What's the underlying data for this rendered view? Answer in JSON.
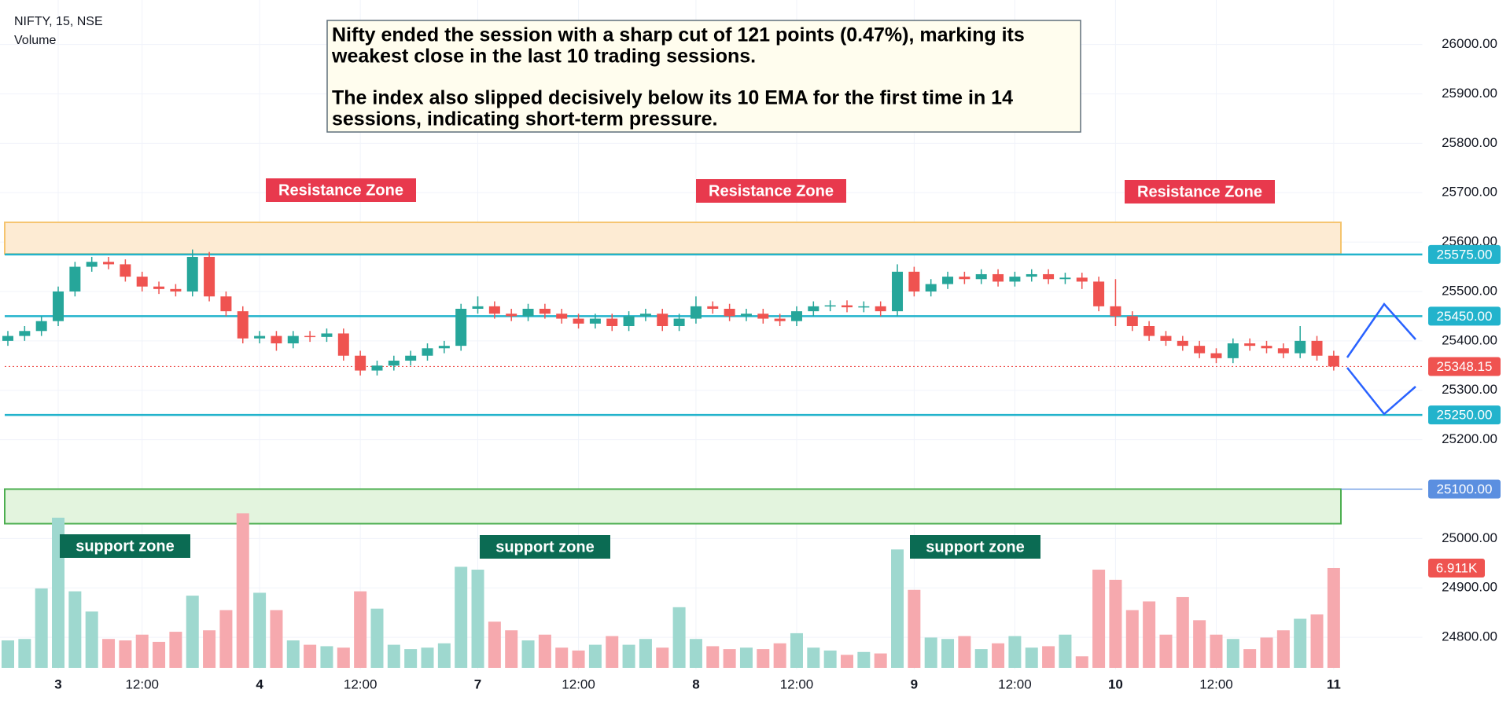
{
  "chart_data": {
    "type": "candlestick",
    "title": "NIFTY, 15, NSE",
    "subtitle": "Volume",
    "annotation": [
      "Nifty ended the session with a sharp cut of 121 points (0.47%), marking its",
      "weakest close in the last 10 trading sessions.",
      "The index also slipped decisively below its 10 EMA for the first time in 14",
      "sessions, indicating short-term pressure."
    ],
    "categories": [
      null,
      null,
      null,
      "3",
      null,
      null,
      null,
      null,
      "12:00",
      null,
      null,
      null,
      null,
      null,
      null,
      "4",
      null,
      null,
      null,
      null,
      null,
      "12:00",
      null,
      null,
      null,
      null,
      null,
      null,
      "7",
      null,
      null,
      null,
      null,
      null,
      "12:00",
      null,
      null,
      null,
      null,
      null,
      null,
      "8",
      null,
      null,
      null,
      null,
      null,
      "12:00",
      null,
      null,
      null,
      null,
      null,
      null,
      "9",
      null,
      null,
      null,
      null,
      null,
      "12:00",
      null,
      null,
      null,
      null,
      null,
      "10",
      null,
      null,
      null,
      null,
      null,
      "12:00",
      null,
      null,
      null,
      null,
      null,
      null,
      "11"
    ],
    "open": [
      25400,
      25410,
      25420,
      25440,
      25500,
      25550,
      25560,
      25555,
      25530,
      25510,
      25505,
      25500,
      25570,
      25490,
      25460,
      25405,
      25410,
      25395,
      25410,
      25408,
      25415,
      25370,
      25340,
      25350,
      25360,
      25370,
      25385,
      25390,
      25465,
      25470,
      25455,
      25450,
      25465,
      25455,
      25445,
      25435,
      25445,
      25430,
      25450,
      25455,
      25430,
      25445,
      25470,
      25465,
      25450,
      25455,
      25445,
      25440,
      25460,
      25470,
      25472,
      25468,
      25470,
      25460,
      25540,
      25500,
      25515,
      25530,
      25525,
      25535,
      25520,
      25530,
      25535,
      25525,
      25528,
      25520,
      25470,
      25450,
      25430,
      25410,
      25400,
      25390,
      25375,
      25365,
      25395,
      25390,
      25385,
      25375,
      25400,
      25370
    ],
    "high": [
      25420,
      25430,
      25450,
      25510,
      25560,
      25570,
      25570,
      25565,
      25540,
      25520,
      25515,
      25585,
      25580,
      25500,
      25470,
      25420,
      25420,
      25420,
      25420,
      25425,
      25425,
      25380,
      25360,
      25370,
      25380,
      25395,
      25400,
      25475,
      25490,
      25480,
      25465,
      25475,
      25475,
      25465,
      25455,
      25455,
      25455,
      25460,
      25465,
      25465,
      25455,
      25490,
      25480,
      25475,
      25465,
      25465,
      25455,
      25470,
      25480,
      25482,
      25482,
      25480,
      25480,
      25555,
      25550,
      25525,
      25540,
      25540,
      25545,
      25545,
      25540,
      25545,
      25545,
      25538,
      25538,
      25530,
      25525,
      25460,
      25440,
      25420,
      25410,
      25400,
      25385,
      25405,
      25405,
      25400,
      25395,
      25430,
      25410,
      25380
    ],
    "low": [
      25390,
      25400,
      25410,
      25430,
      25490,
      25540,
      25545,
      25520,
      25500,
      25495,
      25490,
      25490,
      25480,
      25450,
      25395,
      25395,
      25380,
      25385,
      25398,
      25398,
      25360,
      25330,
      25330,
      25340,
      25350,
      25360,
      25375,
      25380,
      25455,
      25445,
      25440,
      25440,
      25445,
      25435,
      25425,
      25425,
      25420,
      25420,
      25440,
      25420,
      25420,
      25435,
      25455,
      25440,
      25440,
      25435,
      25430,
      25430,
      25450,
      25460,
      25458,
      25458,
      25450,
      25450,
      25490,
      25490,
      25505,
      25515,
      25515,
      25510,
      25510,
      25520,
      25515,
      25515,
      25505,
      25460,
      25430,
      25420,
      25400,
      25390,
      25380,
      25365,
      25355,
      25355,
      25380,
      25375,
      25365,
      25365,
      25360,
      25340
    ],
    "close": [
      25410,
      25420,
      25440,
      25500,
      25550,
      25560,
      25555,
      25530,
      25510,
      25505,
      25500,
      25570,
      25490,
      25460,
      25405,
      25410,
      25395,
      25410,
      25408,
      25415,
      25370,
      25340,
      25350,
      25360,
      25370,
      25385,
      25390,
      25465,
      25470,
      25455,
      25450,
      25465,
      25455,
      25445,
      25435,
      25445,
      25430,
      25450,
      25455,
      25430,
      25445,
      25470,
      25465,
      25450,
      25455,
      25445,
      25440,
      25460,
      25470,
      25472,
      25468,
      25470,
      25460,
      25540,
      25500,
      25515,
      25530,
      25525,
      25535,
      25520,
      25530,
      25535,
      25525,
      25528,
      25520,
      25470,
      25450,
      25430,
      25410,
      25400,
      25390,
      25375,
      25365,
      25395,
      25390,
      25385,
      25375,
      25400,
      25370,
      25348.15
    ],
    "volume": {
      "values": [
        1900,
        2000,
        5500,
        10400,
        5300,
        3900,
        2000,
        1900,
        2300,
        1800,
        2500,
        5000,
        2600,
        4000,
        10700,
        5200,
        4000,
        1900,
        1600,
        1500,
        1400,
        5300,
        4100,
        1600,
        1300,
        1400,
        1700,
        7000,
        6800,
        3200,
        2600,
        1900,
        2300,
        1400,
        1200,
        1600,
        2200,
        1600,
        2000,
        1400,
        4200,
        2000,
        1500,
        1300,
        1400,
        1300,
        1700,
        2400,
        1400,
        1200,
        900,
        1100,
        1000,
        8200,
        5400,
        2100,
        2000,
        2200,
        1300,
        1700,
        2200,
        1400,
        1500,
        2300,
        800,
        6800,
        6100,
        4000,
        4600,
        2300,
        4900,
        3300,
        2300,
        2000,
        1300,
        2100,
        2600,
        3400,
        3700,
        6911
      ],
      "value_labels": [
        null,
        null,
        null,
        null,
        null,
        null,
        null,
        null,
        null,
        null,
        null,
        null,
        null,
        null,
        null,
        null,
        null,
        null,
        null,
        null,
        null,
        null,
        null,
        null,
        null,
        null,
        null,
        null,
        null,
        null,
        null,
        null,
        null,
        null,
        null,
        null,
        null,
        null,
        null,
        null,
        null,
        null,
        null,
        null,
        null,
        null,
        null,
        null,
        null,
        null,
        null,
        null,
        null,
        null,
        null,
        null,
        null,
        null,
        null,
        null,
        null,
        null,
        null,
        null,
        null,
        null,
        null,
        null,
        null,
        null,
        null,
        null,
        null,
        null,
        null,
        null,
        null,
        null,
        null,
        "6.911K"
      ],
      "vlim": [
        0,
        46250
      ]
    },
    "up_color": "#26a69a",
    "down_color": "#ef5350",
    "volume_up_color": "#9ed8cf",
    "volume_down_color": "#f6a9ae",
    "ylim": [
      24735,
      26090
    ],
    "yticks": [
      {
        "value": 24800,
        "label": "24800.00"
      },
      {
        "value": 24900,
        "label": "24900.00"
      },
      {
        "value": 25000,
        "label": "25000.00"
      },
      {
        "value": 25100,
        "label": "25100.00"
      },
      {
        "value": 25200,
        "label": "25200.00"
      },
      {
        "value": 25300,
        "label": "25300.00"
      },
      {
        "value": 25400,
        "label": "25400.00"
      },
      {
        "value": 25500,
        "label": "25500.00"
      },
      {
        "value": 25600,
        "label": "25600.00"
      },
      {
        "value": 25700,
        "label": "25700.00"
      },
      {
        "value": 25800,
        "label": "25800.00"
      },
      {
        "value": 25900,
        "label": "25900.00"
      },
      {
        "value": 26000,
        "label": "26000.00"
      }
    ],
    "grid": true,
    "levels": [
      {
        "value": 25575,
        "label": "25575.00",
        "color": "#22b3cc"
      },
      {
        "value": 25450,
        "label": "25450.00",
        "color": "#22b3cc"
      },
      {
        "value": 25250,
        "label": "25250.00",
        "color": "#22b3cc"
      },
      {
        "value": 25100,
        "label": "25100.00",
        "color": "#5b8fe0"
      }
    ],
    "zones": [
      {
        "label": "Resistance Zone",
        "top": 25640,
        "bottom": 25576,
        "fill": "#fdebd3",
        "border": "#f5c46e",
        "label_color": "#e8394d"
      },
      {
        "label": "support zone",
        "top": 25100,
        "bottom": 25030,
        "fill": "#e3f4de",
        "border": "#4cae4f",
        "label_color": "#0b6b53"
      }
    ],
    "last_price": 25348.15,
    "last_price_color": "#ef5350"
  }
}
